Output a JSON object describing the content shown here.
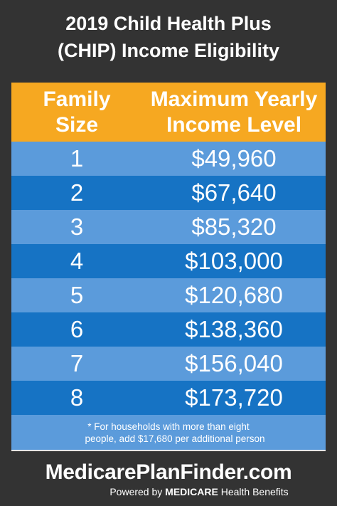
{
  "header": {
    "line1": "2019 Child Health Plus",
    "line2": "(CHIP) Income Eligibility"
  },
  "table": {
    "col1_line1": "Family",
    "col1_line2": "Size",
    "col2_line1": "Maximum Yearly",
    "col2_line2": "Income Level",
    "rows": [
      {
        "size": "1",
        "income": "$49,960"
      },
      {
        "size": "2",
        "income": "$67,640"
      },
      {
        "size": "3",
        "income": "$85,320"
      },
      {
        "size": "4",
        "income": "$103,000"
      },
      {
        "size": "5",
        "income": "$120,680"
      },
      {
        "size": "6",
        "income": "$138,360"
      },
      {
        "size": "7",
        "income": "$156,040"
      },
      {
        "size": "8",
        "income": "$173,720"
      }
    ]
  },
  "footnote": {
    "line1": "* For households with more than eight",
    "line2": "people, add $17,680 per additional person"
  },
  "brand": {
    "name": "MedicarePlanFinder.com",
    "powered_prefix": "Powered by",
    "powered_bold": "MEDICARE",
    "powered_suffix": "Health Benefits"
  },
  "colors": {
    "background": "#333333",
    "header_row": "#f6a821",
    "row_light": "#5b9bdb",
    "row_dark": "#1673c4"
  }
}
